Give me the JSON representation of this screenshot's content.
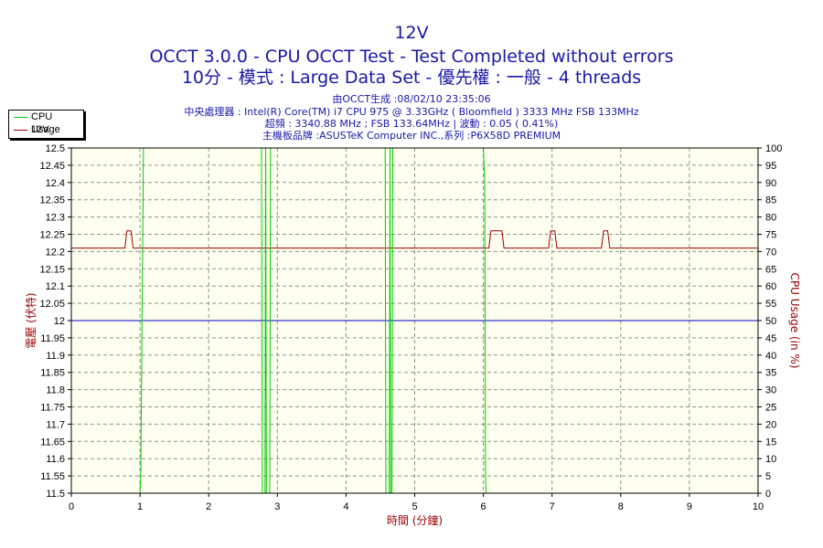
{
  "header": {
    "title": "12V",
    "subtitle1": "OCCT 3.0.0 - CPU OCCT Test - Test Completed without errors",
    "subtitle2": "10分 - 模式 : Large Data Set - 優先權 : 一般 - 4 threads",
    "info1": "由OCCT生成 :08/02/10 23:35:06",
    "info2": "中央處理器 : Intel(R) Core(TM) i7 CPU 975 @ 3.33GHz ( Bloomfield ) 3333 MHz FSB 133MHz",
    "info3": "超頻 : 3340.88 MHz ; FSB 133.64MHz | 波動 : 0.05 ( 0.41%)",
    "info4": "主機板品牌 :ASUSTeK Computer INC.,系列 :P6X58D PREMIUM"
  },
  "legend": {
    "items": [
      {
        "label": "CPU Usage",
        "color": "#00cc00"
      },
      {
        "label": "12V",
        "color": "#990000"
      }
    ]
  },
  "chart_data": {
    "type": "line",
    "xlabel": "時間 (分鐘)",
    "ylabel": "電壓 (伏特)",
    "y2label": "CPU Usage (in %)",
    "xlim": [
      0,
      10
    ],
    "ylim": [
      11.5,
      12.5
    ],
    "y2lim": [
      0,
      100
    ],
    "x_ticks": [
      "0",
      "1",
      "2",
      "3",
      "4",
      "5",
      "6",
      "7",
      "8",
      "9",
      "10"
    ],
    "y_ticks": [
      "11.5",
      "11.55",
      "11.6",
      "11.65",
      "11.7",
      "11.75",
      "11.8",
      "11.85",
      "11.9",
      "11.95",
      "12",
      "12.05",
      "12.1",
      "12.15",
      "12.2",
      "12.25",
      "12.3",
      "12.35",
      "12.4",
      "12.45",
      "12.5"
    ],
    "y2_ticks": [
      "0",
      "5",
      "10",
      "15",
      "20",
      "25",
      "30",
      "35",
      "40",
      "45",
      "50",
      "55",
      "60",
      "65",
      "70",
      "75",
      "80",
      "85",
      "90",
      "95",
      "100"
    ],
    "grid": true,
    "legend_position": "top-left",
    "reference_line": {
      "y": 12,
      "color": "#0000cc"
    },
    "series": [
      {
        "name": "12V",
        "axis": "left",
        "color": "#990000",
        "x": [
          0,
          0.78,
          0.81,
          0.87,
          0.9,
          6.08,
          6.11,
          6.27,
          6.3,
          6.95,
          6.98,
          7.04,
          7.07,
          7.72,
          7.75,
          7.81,
          7.84,
          10
        ],
        "y": [
          12.21,
          12.21,
          12.26,
          12.26,
          12.21,
          12.21,
          12.26,
          12.26,
          12.21,
          12.21,
          12.26,
          12.26,
          12.21,
          12.21,
          12.26,
          12.26,
          12.21,
          12.21
        ]
      },
      {
        "name": "CPU Usage",
        "axis": "right",
        "color": "#00cc00",
        "x": [
          0,
          1.0,
          1.01,
          1.05,
          2.77,
          2.78,
          2.82,
          2.83,
          2.84,
          2.89,
          2.9,
          4.57,
          4.58,
          4.63,
          4.64,
          4.65,
          4.67,
          4.68,
          6.0,
          6.02,
          6.03,
          6.04,
          10
        ],
        "y": [
          0,
          0,
          5,
          100,
          100,
          0,
          0,
          100,
          0,
          0,
          100,
          100,
          0,
          0,
          100,
          0,
          0,
          100,
          100,
          90,
          5,
          0,
          0
        ]
      }
    ]
  }
}
